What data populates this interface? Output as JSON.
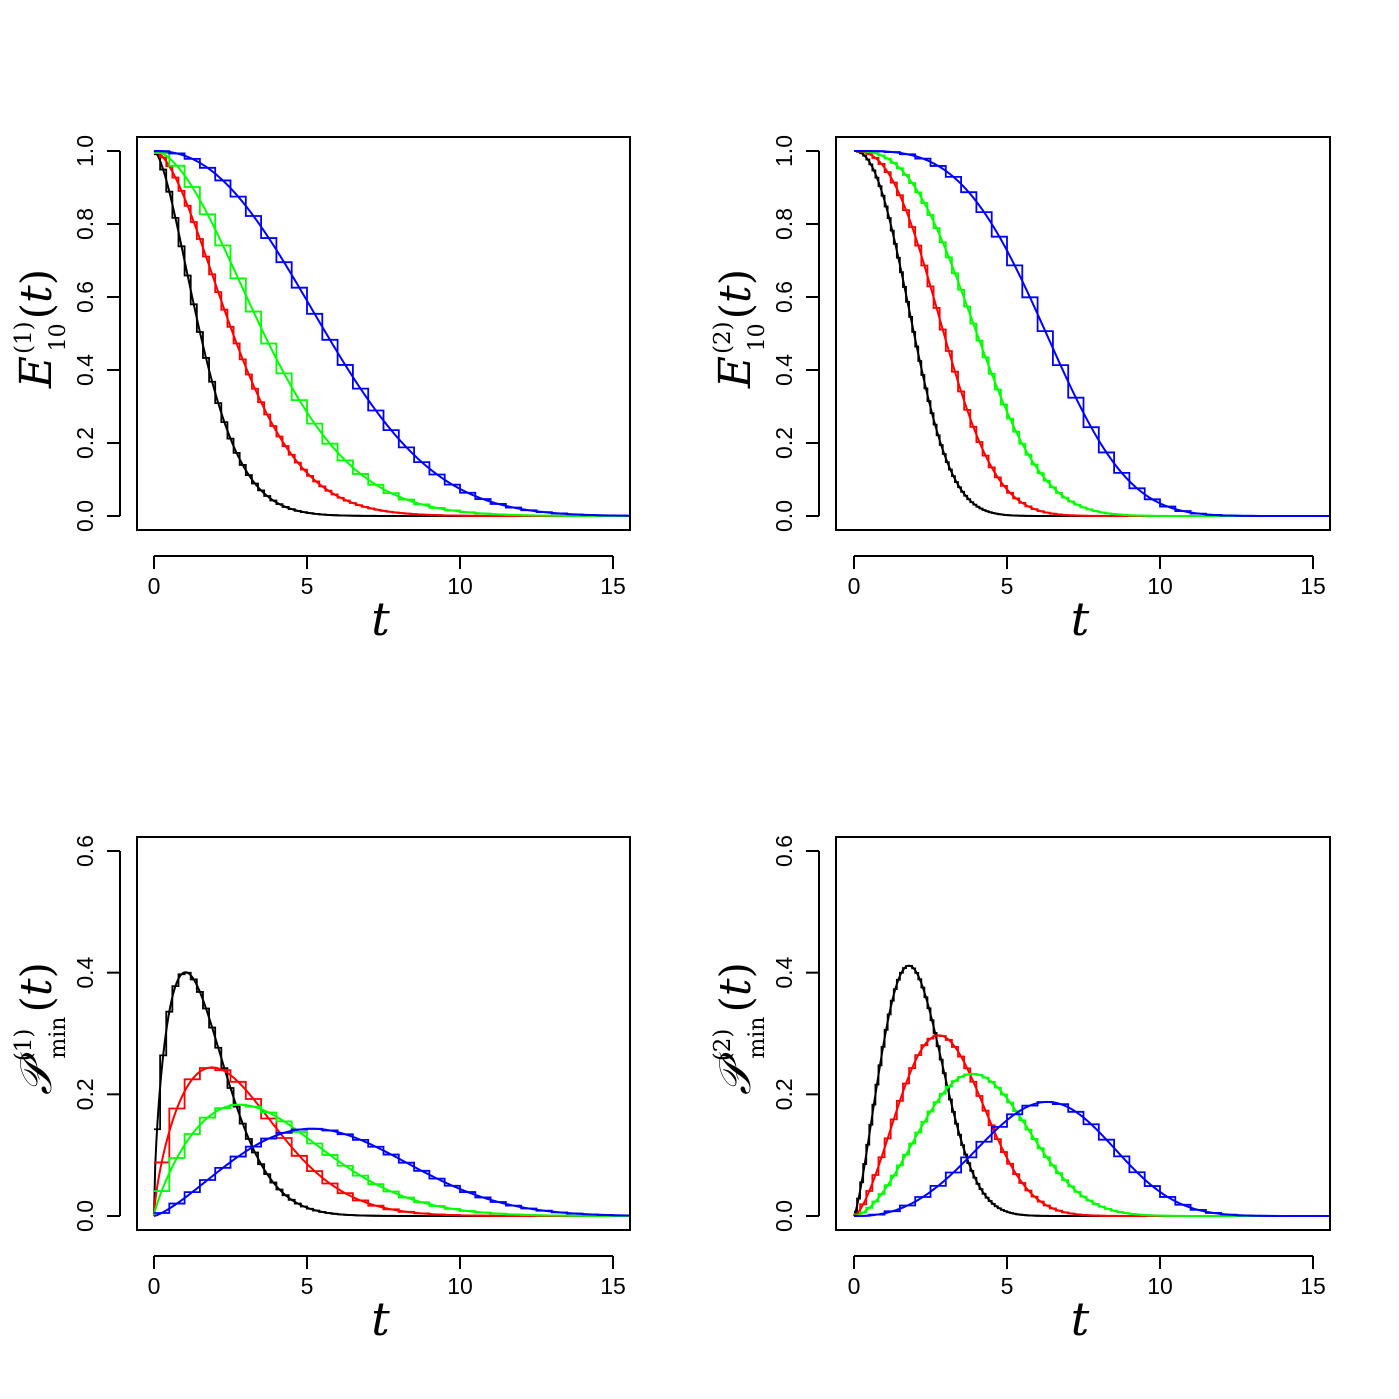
{
  "chart_data": [
    {
      "type": "line",
      "panel": "top-left",
      "kind": "survival",
      "xlabel": "t",
      "ylabel": {
        "main": "E",
        "sup": "(1)",
        "sub": "10",
        "arg": "t"
      },
      "xlim": [
        0,
        15.5
      ],
      "ylim": [
        0,
        1.0
      ],
      "xticks": [
        "0",
        "5",
        "10",
        "15"
      ],
      "yticks": [
        "0.0",
        "0.2",
        "0.4",
        "0.6",
        "0.8",
        "1.0"
      ],
      "series": [
        {
          "name": "black",
          "color": "#000000",
          "shape": 1.6,
          "scale": 1.9,
          "step": 0.2
        },
        {
          "name": "red",
          "color": "#ff0000",
          "shape": 1.7,
          "scale": 3.2,
          "step": 0.2
        },
        {
          "name": "green",
          "color": "#00ff00",
          "shape": 1.8,
          "scale": 4.4,
          "step": 0.5
        },
        {
          "name": "blue",
          "color": "#0000ff",
          "shape": 2.3,
          "scale": 6.6,
          "step": 0.5
        }
      ]
    },
    {
      "type": "line",
      "panel": "top-right",
      "kind": "survival",
      "xlabel": "t",
      "ylabel": {
        "main": "E",
        "sup": "(2)",
        "sub": "10",
        "arg": "t"
      },
      "xlim": [
        0,
        15.5
      ],
      "ylim": [
        0,
        1.0
      ],
      "xticks": [
        "0",
        "5",
        "10",
        "15"
      ],
      "yticks": [
        "0.0",
        "0.2",
        "0.4",
        "0.6",
        "0.8",
        "1.0"
      ],
      "series": [
        {
          "name": "black",
          "color": "#000000",
          "shape": 2.3,
          "scale": 2.3,
          "step": 0.1
        },
        {
          "name": "red",
          "color": "#ff0000",
          "shape": 2.5,
          "scale": 3.4,
          "step": 0.2
        },
        {
          "name": "green",
          "color": "#00ff00",
          "shape": 2.7,
          "scale": 4.6,
          "step": 0.2
        },
        {
          "name": "blue",
          "color": "#0000ff",
          "shape": 3.4,
          "scale": 7.0,
          "step": 0.5
        }
      ]
    },
    {
      "type": "line",
      "panel": "bottom-left",
      "kind": "density",
      "xlabel": "t",
      "ylabel": {
        "main": "P",
        "sup": "(1)",
        "sub": "min",
        "arg": "t"
      },
      "xlim": [
        0,
        15.5
      ],
      "ylim": [
        0,
        0.6
      ],
      "xticks": [
        "0",
        "5",
        "10",
        "15"
      ],
      "yticks": [
        "0.0",
        "0.2",
        "0.4",
        "0.6"
      ],
      "series": [
        {
          "name": "black",
          "color": "#000000",
          "shape": 1.6,
          "scale": 1.9,
          "step": 0.2
        },
        {
          "name": "red",
          "color": "#ff0000",
          "shape": 1.7,
          "scale": 3.2,
          "step": 0.5
        },
        {
          "name": "green",
          "color": "#00ff00",
          "shape": 1.8,
          "scale": 4.4,
          "step": 0.5
        },
        {
          "name": "blue",
          "color": "#0000ff",
          "shape": 2.3,
          "scale": 6.6,
          "step": 0.5
        }
      ]
    },
    {
      "type": "line",
      "panel": "bottom-right",
      "kind": "density",
      "xlabel": "t",
      "ylabel": {
        "main": "P",
        "sup": "(2)",
        "sub": "min",
        "arg": "t"
      },
      "xlim": [
        0,
        15.5
      ],
      "ylim": [
        0,
        0.6
      ],
      "xticks": [
        "0",
        "5",
        "10",
        "15"
      ],
      "yticks": [
        "0.0",
        "0.2",
        "0.4",
        "0.6"
      ],
      "series": [
        {
          "name": "black",
          "color": "#000000",
          "shape": 2.3,
          "scale": 2.3,
          "step": 0.1
        },
        {
          "name": "red",
          "color": "#ff0000",
          "shape": 2.5,
          "scale": 3.4,
          "step": 0.2
        },
        {
          "name": "green",
          "color": "#00ff00",
          "shape": 2.7,
          "scale": 4.6,
          "step": 0.2
        },
        {
          "name": "blue",
          "color": "#0000ff",
          "shape": 3.4,
          "scale": 7.0,
          "step": 0.5
        }
      ]
    }
  ]
}
